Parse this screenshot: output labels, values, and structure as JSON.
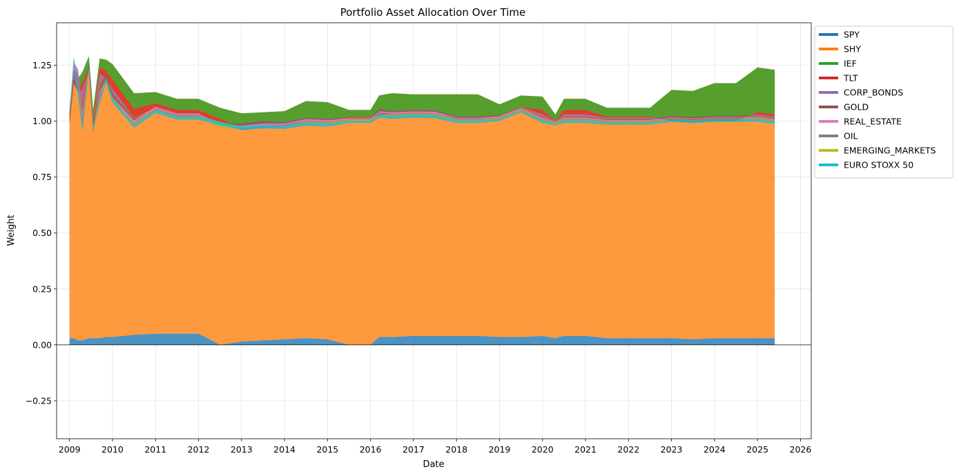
{
  "chart_data": {
    "type": "area",
    "title": "Portfolio Asset Allocation Over Time",
    "xlabel": "Date",
    "ylabel": "Weight",
    "xlim": [
      2008.7,
      2026.25
    ],
    "ylim": [
      -0.42,
      1.44
    ],
    "x_ticks": [
      "2009",
      "2010",
      "2011",
      "2012",
      "2013",
      "2014",
      "2015",
      "2016",
      "2017",
      "2018",
      "2019",
      "2020",
      "2021",
      "2022",
      "2023",
      "2024",
      "2025",
      "2026"
    ],
    "y_ticks": [
      "−0.25",
      "0.00",
      "0.25",
      "0.50",
      "0.75",
      "1.00",
      "1.25"
    ],
    "y_tick_values": [
      -0.25,
      0.0,
      0.25,
      0.5,
      0.75,
      1.0,
      1.25
    ],
    "grid": true,
    "legend_position": "outside-top-right",
    "x": [
      2009.0,
      2009.1,
      2009.2,
      2009.3,
      2009.45,
      2009.55,
      2009.7,
      2009.85,
      2010.0,
      2010.5,
      2011.0,
      2011.5,
      2012.0,
      2012.5,
      2013.0,
      2013.5,
      2014.0,
      2014.5,
      2015.0,
      2015.5,
      2016.0,
      2016.2,
      2016.5,
      2017.0,
      2017.5,
      2018.0,
      2018.5,
      2019.0,
      2019.5,
      2020.0,
      2020.3,
      2020.5,
      2021.0,
      2021.5,
      2022.0,
      2022.5,
      2023.0,
      2023.5,
      2024.0,
      2024.5,
      2025.0,
      2025.4
    ],
    "series": [
      {
        "name": "SPY",
        "color": "#1f77b4",
        "values": [
          0.03,
          0.03,
          0.02,
          0.02,
          0.03,
          0.03,
          0.03,
          0.035,
          0.035,
          0.045,
          0.05,
          0.05,
          0.05,
          0.0,
          0.015,
          0.02,
          0.025,
          0.03,
          0.025,
          0.0,
          0.0,
          0.035,
          0.035,
          0.04,
          0.04,
          0.04,
          0.04,
          0.035,
          0.035,
          0.04,
          0.03,
          0.04,
          0.04,
          0.03,
          0.03,
          0.03,
          0.03,
          0.025,
          0.03,
          0.03,
          0.03,
          0.03
        ]
      },
      {
        "name": "SHY",
        "color": "#ff7f0e",
        "values": [
          1.0,
          1.2,
          1.17,
          1.2,
          1.26,
          1.02,
          1.25,
          1.24,
          1.22,
          1.08,
          1.08,
          1.05,
          1.05,
          1.06,
          1.02,
          1.02,
          1.02,
          1.06,
          1.06,
          1.05,
          1.05,
          1.08,
          1.09,
          1.08,
          1.08,
          1.08,
          1.08,
          1.04,
          1.08,
          1.07,
          1.0,
          1.06,
          1.06,
          1.03,
          1.03,
          1.03,
          1.11,
          1.11,
          1.14,
          1.14,
          1.21,
          1.2
        ]
      },
      {
        "name": "IEF",
        "color": "#2ca02c",
        "values": [
          -0.04,
          -0.06,
          -0.06,
          -0.05,
          -0.05,
          -0.04,
          -0.04,
          -0.05,
          -0.07,
          -0.07,
          -0.05,
          -0.05,
          -0.05,
          -0.05,
          -0.06,
          -0.06,
          -0.06,
          -0.08,
          -0.08,
          -0.03,
          -0.03,
          -0.09,
          -0.09,
          -0.08,
          -0.08,
          -0.11,
          -0.11,
          -0.05,
          -0.05,
          -0.06,
          -0.03,
          -0.05,
          -0.05,
          -0.04,
          -0.04,
          -0.04,
          -0.14,
          -0.14,
          -0.17,
          -0.17,
          -0.2,
          -0.2
        ]
      },
      {
        "name": "TLT",
        "color": "#d62728",
        "values": [
          0.02,
          0.02,
          0.0,
          -0.03,
          -0.01,
          -0.02,
          -0.03,
          -0.03,
          -0.04,
          -0.04,
          -0.02,
          -0.02,
          -0.02,
          -0.015,
          -0.015,
          -0.01,
          -0.01,
          -0.005,
          -0.005,
          -0.003,
          -0.003,
          0.01,
          0.005,
          0.005,
          0.003,
          0.005,
          0.005,
          0.0,
          0.0,
          -0.02,
          0.0,
          -0.02,
          -0.02,
          -0.005,
          -0.005,
          -0.005,
          0.02,
          0.02,
          0.02,
          0.02,
          -0.01,
          -0.01
        ]
      },
      {
        "name": "CORP_BONDS",
        "color": "#9467bd",
        "values": [
          0.01,
          0.07,
          0.1,
          -0.06,
          0.03,
          0.0,
          -0.05,
          0.02,
          -0.02,
          -0.003,
          0.0,
          0.0,
          0.0,
          -0.005,
          0.03,
          0.03,
          0.02,
          0.01,
          0.01,
          0.0,
          0.0,
          0.02,
          0.005,
          0.005,
          0.005,
          0.006,
          0.006,
          0.002,
          0.0,
          -0.01,
          0.0,
          -0.01,
          -0.01,
          -0.005,
          -0.005,
          -0.005,
          0.003,
          0.003,
          0.004,
          0.004,
          -0.005,
          -0.005
        ]
      },
      {
        "name": "GOLD",
        "color": "#8c564b",
        "values": [
          0.005,
          0.005,
          0.0,
          -0.04,
          -0.02,
          -0.03,
          -0.03,
          -0.03,
          -0.02,
          -0.01,
          0.005,
          0.005,
          0.005,
          -0.01,
          -0.01,
          -0.01,
          -0.005,
          -0.005,
          -0.005,
          -0.005,
          -0.005,
          -0.01,
          -0.005,
          -0.005,
          -0.005,
          -0.005,
          -0.005,
          -0.005,
          -0.005,
          -0.005,
          -0.003,
          -0.005,
          -0.005,
          -0.005,
          -0.005,
          -0.005,
          -0.005,
          -0.005,
          -0.005,
          -0.005,
          -0.005,
          -0.005
        ]
      },
      {
        "name": "REAL_ESTATE",
        "color": "#e377c2",
        "values": [
          -0.003,
          -0.003,
          -0.03,
          -0.02,
          -0.015,
          -0.015,
          -0.01,
          -0.01,
          -0.01,
          -0.008,
          -0.008,
          -0.008,
          -0.008,
          -0.008,
          -0.008,
          -0.008,
          -0.008,
          -0.008,
          -0.008,
          -0.004,
          -0.004,
          -0.008,
          -0.008,
          -0.008,
          -0.008,
          -0.005,
          -0.005,
          -0.005,
          -0.005,
          -0.005,
          -0.003,
          -0.005,
          -0.005,
          -0.004,
          -0.004,
          -0.004,
          -0.004,
          -0.004,
          -0.004,
          -0.004,
          -0.004,
          -0.004
        ]
      },
      {
        "name": "OIL",
        "color": "#7f7f7f",
        "values": [
          0.005,
          0.005,
          -0.05,
          -0.04,
          0.005,
          0.01,
          -0.03,
          0.005,
          0.003,
          -0.005,
          -0.005,
          -0.005,
          -0.005,
          -0.005,
          -0.005,
          -0.005,
          -0.005,
          -0.005,
          -0.005,
          -0.004,
          -0.004,
          -0.005,
          -0.005,
          -0.005,
          -0.005,
          -0.005,
          -0.005,
          -0.004,
          -0.004,
          -0.004,
          -0.003,
          -0.004,
          -0.004,
          -0.004,
          -0.004,
          -0.004,
          -0.004,
          -0.004,
          -0.004,
          -0.004,
          -0.004,
          -0.004
        ]
      },
      {
        "name": "EMERGING_MARKETS",
        "color": "#bcbd22",
        "values": [
          0.02,
          0.02,
          0.0,
          0.0,
          0.01,
          0.02,
          0.01,
          0.01,
          0.005,
          -0.003,
          0.0,
          0.0,
          0.0,
          0.03,
          0.01,
          0.005,
          0.003,
          -0.002,
          -0.002,
          -0.002,
          -0.002,
          -0.002,
          -0.002,
          -0.002,
          -0.002,
          -0.002,
          -0.002,
          -0.002,
          -0.002,
          -0.002,
          -0.002,
          -0.002,
          -0.002,
          -0.002,
          -0.002,
          -0.002,
          -0.002,
          -0.002,
          -0.002,
          -0.002,
          -0.002,
          -0.002
        ]
      },
      {
        "name": "EURO STOXX 50",
        "color": "#17becf",
        "values": [
          -0.02,
          -0.02,
          -0.04,
          -0.03,
          -0.02,
          -0.02,
          -0.02,
          -0.02,
          -0.02,
          -0.015,
          -0.015,
          -0.015,
          -0.015,
          -0.015,
          -0.015,
          -0.015,
          -0.015,
          -0.015,
          -0.015,
          -0.01,
          -0.01,
          -0.015,
          -0.015,
          -0.015,
          -0.015,
          -0.012,
          -0.012,
          -0.01,
          -0.01,
          -0.012,
          -0.008,
          -0.012,
          -0.012,
          -0.01,
          -0.01,
          -0.01,
          -0.012,
          -0.012,
          -0.012,
          -0.012,
          -0.012,
          -0.012
        ]
      }
    ]
  }
}
